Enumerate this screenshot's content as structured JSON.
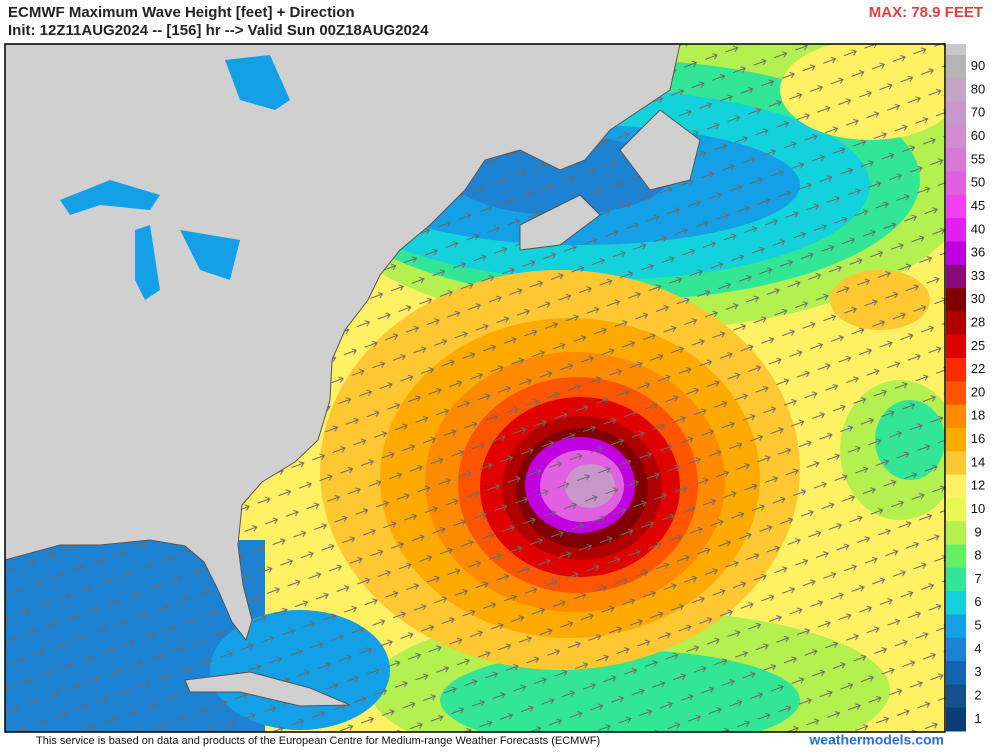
{
  "header": {
    "title": "ECMWF Maximum Wave Height [feet] + Direction",
    "subtitle": "Init: 12Z11AUG2024 -- [156] hr --> Valid Sun 00Z18AUG2024",
    "max_label": "MAX: 78.9 FEET"
  },
  "legend": {
    "labels": [
      "90",
      "80",
      "70",
      "60",
      "55",
      "50",
      "45",
      "40",
      "36",
      "33",
      "30",
      "28",
      "25",
      "22",
      "20",
      "18",
      "16",
      "14",
      "12",
      "10",
      "9",
      "8",
      "7",
      "6",
      "5",
      "4",
      "3",
      "2",
      "1"
    ],
    "colors": [
      "#b4b4b4",
      "#c4a4c4",
      "#c896c8",
      "#d28cd2",
      "#d878d8",
      "#e060e0",
      "#f040f0",
      "#e020f0",
      "#c000e0",
      "#8b0a7a",
      "#800000",
      "#b00000",
      "#e00000",
      "#ff2a00",
      "#ff5500",
      "#ff8c00",
      "#ffaa00",
      "#ffc832",
      "#fff064",
      "#e8f850",
      "#b4f050",
      "#64f064",
      "#32e696",
      "#14d2dc",
      "#14a0e6",
      "#1e82d2",
      "#1464b4",
      "#14508c",
      "#0a3c78"
    ]
  },
  "footer": {
    "credit": "This service is based on data and products of the European Centre for Medium-range Weather Forecasts (ECMWF)",
    "site": "weathermodels.com"
  }
}
